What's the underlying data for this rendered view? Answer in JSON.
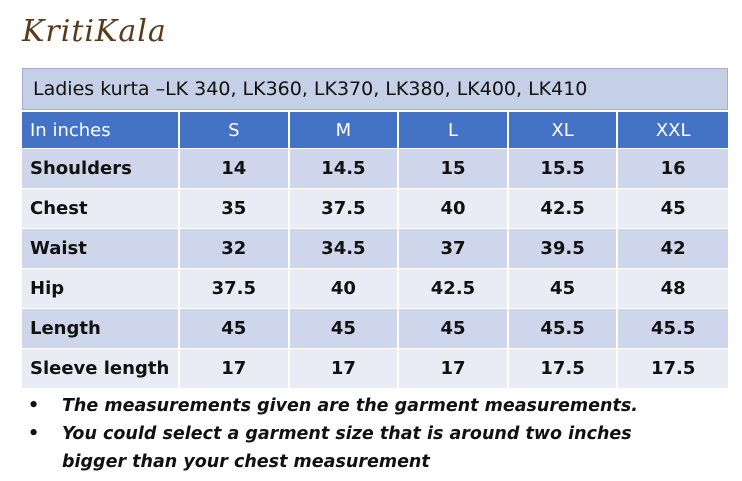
{
  "header": {
    "logo": "KritiKala"
  },
  "table": {
    "title": "Ladies kurta –LK 340, LK360, LK370, LK380, LK400, LK410",
    "columns": [
      "In inches",
      "S",
      "M",
      "L",
      "XL",
      "XXL"
    ],
    "rows": [
      [
        "Shoulders",
        14,
        14.5,
        15,
        15.5,
        16
      ],
      [
        "Chest",
        35,
        37.5,
        40,
        42.5,
        45
      ],
      [
        "Waist",
        32,
        34.5,
        37,
        39.5,
        42
      ],
      [
        "Hip",
        37.5,
        40,
        42.5,
        45,
        48
      ],
      [
        "Length",
        45,
        45,
        45,
        45.5,
        45.5
      ],
      [
        "Sleeve length",
        17,
        17,
        17,
        17.5,
        17.5
      ]
    ]
  },
  "notes": [
    "The measurements given are the garment measurements.",
    "You could select a garment size that is around two inches bigger than your chest measurement"
  ]
}
